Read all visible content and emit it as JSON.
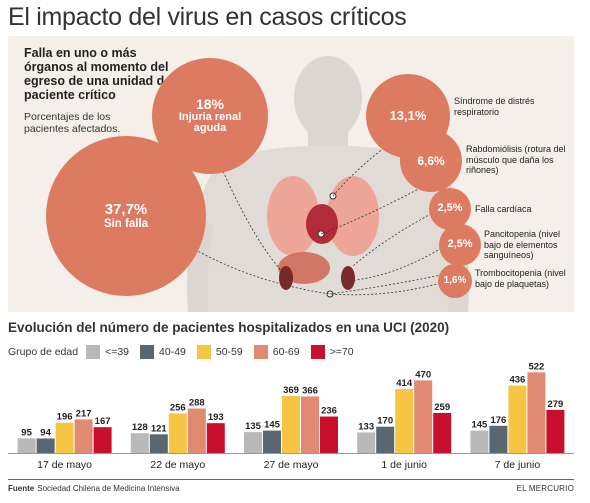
{
  "title": "El impacto del virus en casos críticos",
  "infographic": {
    "heading": "Falla en uno o más órganos al momento del egreso de una unidad de paciente crítico",
    "subheading": "Porcentajes de los pacientes afectados.",
    "bubbles": [
      {
        "pct": "37,7%",
        "label": "Sin falla"
      },
      {
        "pct": "18%",
        "label": "Injuria renal aguda"
      },
      {
        "pct": "13,1%",
        "label": ""
      },
      {
        "pct": "6,6%",
        "label": ""
      },
      {
        "pct": "2,5%",
        "label": ""
      },
      {
        "pct": "2,5%",
        "label": ""
      },
      {
        "pct": "1,6%",
        "label": ""
      }
    ],
    "side_labels": [
      "Síndrome de distrés respiratorio",
      "Rabdomiólisis (rotura del músculo que daña los riñones)",
      "Falla cardíaca",
      "Pancitopenia (nivel bajo de elementos sanguíneos)",
      "Trombocitopenia (nivel bajo de plaquetas)"
    ],
    "colors": {
      "bubble": "#dd7a62",
      "background": "#f4efe9"
    }
  },
  "chart_section": {
    "title": "Evolución del número de pacientes hospitalizados en una UCI (2020)",
    "legend_title": "Grupo de edad"
  },
  "chart_data": {
    "type": "bar",
    "title": "Evolución del número de pacientes hospitalizados en una UCI (2020)",
    "categories": [
      "17 de mayo",
      "22 de mayo",
      "27 de mayo",
      "1 de junio",
      "7 de junio"
    ],
    "series": [
      {
        "name": "<=39",
        "color": "#b9b9b9",
        "values": [
          95,
          128,
          135,
          133,
          145
        ]
      },
      {
        "name": "40-49",
        "color": "#5a6670",
        "values": [
          94,
          121,
          145,
          170,
          176
        ]
      },
      {
        "name": "50-59",
        "color": "#f6c543",
        "values": [
          196,
          256,
          369,
          414,
          436
        ]
      },
      {
        "name": "60-69",
        "color": "#e08a72",
        "values": [
          217,
          288,
          366,
          470,
          522
        ]
      },
      {
        "name": ">=70",
        "color": "#c8102e",
        "values": [
          167,
          193,
          236,
          259,
          279
        ]
      }
    ],
    "ylim": [
      0,
      550
    ],
    "grid": false,
    "legend": "top-left"
  },
  "footer": {
    "source_label": "Fuente",
    "source_text": "Sociedad Chilena de Medicina Intensiva",
    "brand": "EL MERCURIO"
  }
}
